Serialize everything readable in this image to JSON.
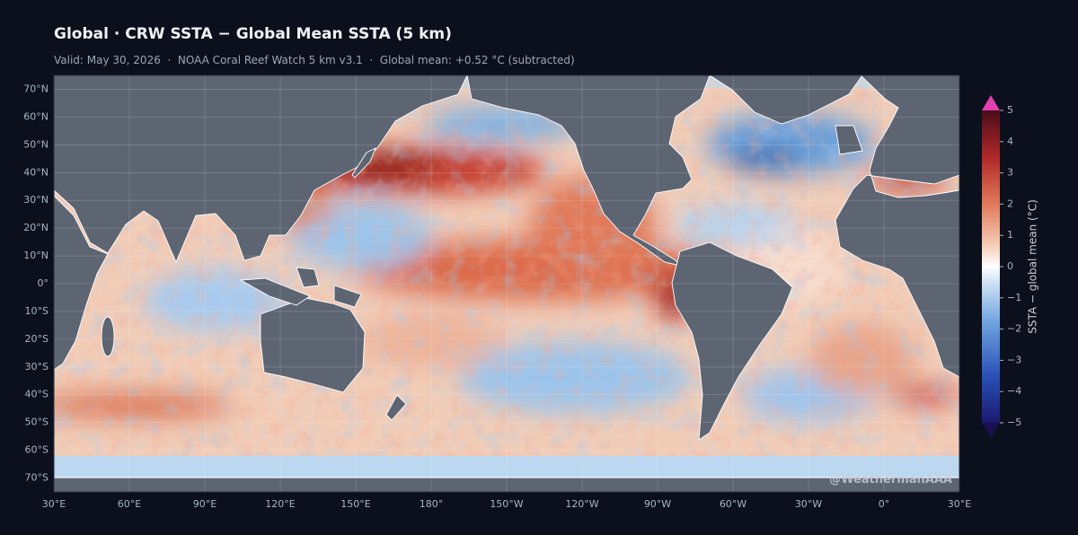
{
  "header": {
    "title": "Global · CRW SSTA − Global Mean SSTA (5 km)",
    "subtitle": "Valid: May 30, 2026  ·  NOAA Coral Reef Watch 5 km v3.1  ·  Global mean: +0.52 °C (subtracted)"
  },
  "map": {
    "xlim": [
      30,
      390
    ],
    "ylim": [
      -75,
      75
    ],
    "xticks": [
      {
        "value": 30,
        "label": "30°E"
      },
      {
        "value": 60,
        "label": "60°E"
      },
      {
        "value": 90,
        "label": "90°E"
      },
      {
        "value": 120,
        "label": "120°E"
      },
      {
        "value": 150,
        "label": "150°E"
      },
      {
        "value": 180,
        "label": "180°"
      },
      {
        "value": 210,
        "label": "150°W"
      },
      {
        "value": 240,
        "label": "120°W"
      },
      {
        "value": 270,
        "label": "90°W"
      },
      {
        "value": 300,
        "label": "60°W"
      },
      {
        "value": 330,
        "label": "30°W"
      },
      {
        "value": 360,
        "label": "0°"
      },
      {
        "value": 390,
        "label": "30°E"
      }
    ],
    "yticks": [
      {
        "value": 70,
        "label": "70°N"
      },
      {
        "value": 60,
        "label": "60°N"
      },
      {
        "value": 50,
        "label": "50°N"
      },
      {
        "value": 40,
        "label": "40°N"
      },
      {
        "value": 30,
        "label": "30°N"
      },
      {
        "value": 20,
        "label": "20°N"
      },
      {
        "value": 10,
        "label": "10°N"
      },
      {
        "value": 0,
        "label": "0°"
      },
      {
        "value": -10,
        "label": "10°S"
      },
      {
        "value": -20,
        "label": "20°S"
      },
      {
        "value": -30,
        "label": "30°S"
      },
      {
        "value": -40,
        "label": "40°S"
      },
      {
        "value": -50,
        "label": "50°S"
      },
      {
        "value": -60,
        "label": "60°S"
      },
      {
        "value": -70,
        "label": "70°S"
      }
    ],
    "grid": true,
    "watermark": "@WeathermanAAA"
  },
  "colorbar": {
    "label": "SSTA − global mean (°C)",
    "lim": [
      -5,
      5
    ],
    "ticks": [
      5,
      4,
      3,
      2,
      1,
      0,
      {
        "value": -1,
        "label": "−1"
      },
      {
        "value": -2,
        "label": "−2"
      },
      {
        "value": -3,
        "label": "−3"
      },
      {
        "value": -4,
        "label": "−4"
      },
      {
        "value": -5,
        "label": "−5"
      }
    ]
  }
}
